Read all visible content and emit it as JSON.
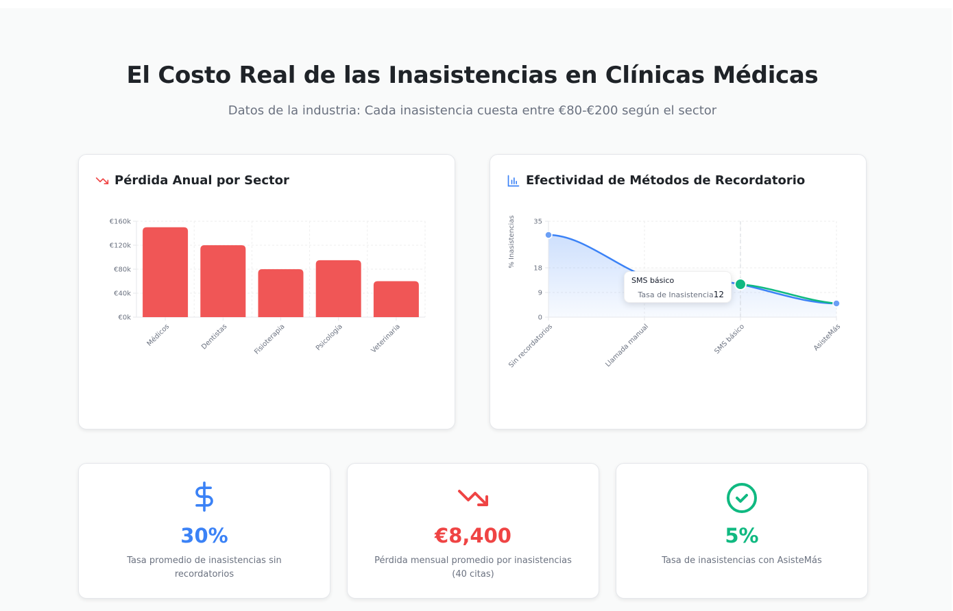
{
  "header": {
    "title": "El Costo Real de las Inasistencias en Clínicas Médicas",
    "subtitle": "Datos de la industria: Cada inasistencia cuesta entre €80-€200 según el sector"
  },
  "colors": {
    "red": "#ef4444",
    "blue": "#3b82f6",
    "green": "#10b981",
    "bar": "#f05656"
  },
  "cards": {
    "loss": {
      "title": "Pérdida Anual por Sector",
      "icon": "trending-down-icon"
    },
    "methods": {
      "title": "Efectividad de Métodos de Recordatorio",
      "icon": "bar-chart-icon"
    }
  },
  "tooltip": {
    "title": "SMS básico",
    "label": "Tasa de Inasistencia",
    "value": "12"
  },
  "stats": [
    {
      "icon": "dollar-icon",
      "value": "30%",
      "label": "Tasa promedio de inasistencias sin recordatorios",
      "color": "#3b82f6"
    },
    {
      "icon": "trending-down-icon",
      "value": "€8,400",
      "label": "Pérdida mensual promedio por inasistencias (40 citas)",
      "color": "#ef4444"
    },
    {
      "icon": "check-circle-icon",
      "value": "5%",
      "label": "Tasa de inasistencias con AsisteMás",
      "color": "#10b981"
    }
  ],
  "chart_data": [
    {
      "type": "bar",
      "title": "Pérdida Anual por Sector",
      "categories": [
        "Médicos",
        "Dentistas",
        "Fisioterapia",
        "Psicología",
        "Veterinaria"
      ],
      "values": [
        150000,
        120000,
        80000,
        95000,
        60000
      ],
      "yticks": [
        "€0k",
        "€40k",
        "€80k",
        "€120k",
        "€160k"
      ],
      "xlabel": "",
      "ylabel": "",
      "ylim": [
        0,
        160000
      ],
      "grid": true,
      "legend": null
    },
    {
      "type": "area",
      "title": "Efectividad de Métodos de Recordatorio",
      "categories": [
        "Sin recordatorios",
        "Llamada manual",
        "SMS básico",
        "AsisteMás"
      ],
      "series": [
        {
          "name": "Tasa de Inasistencia",
          "values": [
            30,
            15,
            12,
            5
          ]
        }
      ],
      "yticks": [
        "0",
        "9",
        "18",
        "35"
      ],
      "xlabel": "",
      "ylabel": "% Inasistencias",
      "ylim": [
        0,
        35
      ],
      "grid": true,
      "active_point": {
        "category": "SMS básico",
        "value": 12
      }
    }
  ]
}
